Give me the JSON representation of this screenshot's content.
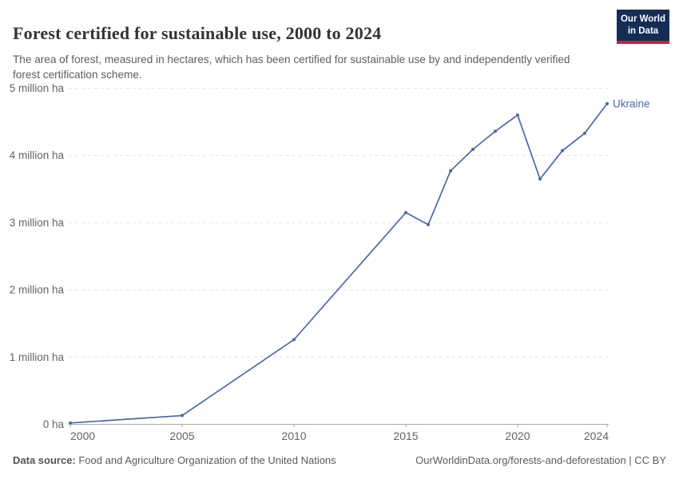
{
  "header": {
    "title": "Forest certified for sustainable use, 2000 to 2024",
    "subtitle": "The area of forest, measured in hectares, which has been certified for sustainable use by and independently verified forest certification scheme.",
    "logo": {
      "line1": "Our World",
      "line2": "in Data",
      "bg_color": "#142d55",
      "bar_color": "#c8232d"
    }
  },
  "chart_data": {
    "type": "line",
    "title": "Forest certified for sustainable use, 2000 to 2024",
    "series_label": "Ukraine",
    "unit": "hectares",
    "ylabel": "",
    "xlabel": "",
    "grid": "horizontal dashed",
    "legend_position": "end-of-line label",
    "xlim": [
      2000,
      2024
    ],
    "ylim_million_ha": [
      0,
      5
    ],
    "x": [
      2000,
      2005,
      2010,
      2015,
      2016,
      2017,
      2018,
      2019,
      2020,
      2021,
      2022,
      2023,
      2024
    ],
    "values_million_ha": [
      0.02,
      0.13,
      1.26,
      3.15,
      2.97,
      3.77,
      4.09,
      4.36,
      4.6,
      3.65,
      4.07,
      4.33,
      4.77
    ],
    "x_axis": {
      "ticks": [
        {
          "year": 2000,
          "label": "2000",
          "align": "start"
        },
        {
          "year": 2005,
          "label": "2005",
          "align": "middle"
        },
        {
          "year": 2010,
          "label": "2010",
          "align": "middle"
        },
        {
          "year": 2015,
          "label": "2015",
          "align": "middle"
        },
        {
          "year": 2020,
          "label": "2020",
          "align": "middle"
        },
        {
          "year": 2024,
          "label": "2024",
          "align": "end"
        }
      ]
    },
    "y_axis": {
      "ticks": [
        {
          "value": 0,
          "label": "0 ha"
        },
        {
          "value": 1,
          "label": "1 million ha"
        },
        {
          "value": 2,
          "label": "2 million ha"
        },
        {
          "value": 3,
          "label": "3 million ha"
        },
        {
          "value": 4,
          "label": "4 million ha"
        },
        {
          "value": 5,
          "label": "5 million ha"
        }
      ]
    },
    "line_color": "#4a69a2"
  },
  "footer": {
    "data_source_label": "Data source:",
    "data_source_value": " Food and Agriculture Organization of the United Nations",
    "attribution": "OurWorldinData.org/forests-and-deforestation | CC BY"
  }
}
